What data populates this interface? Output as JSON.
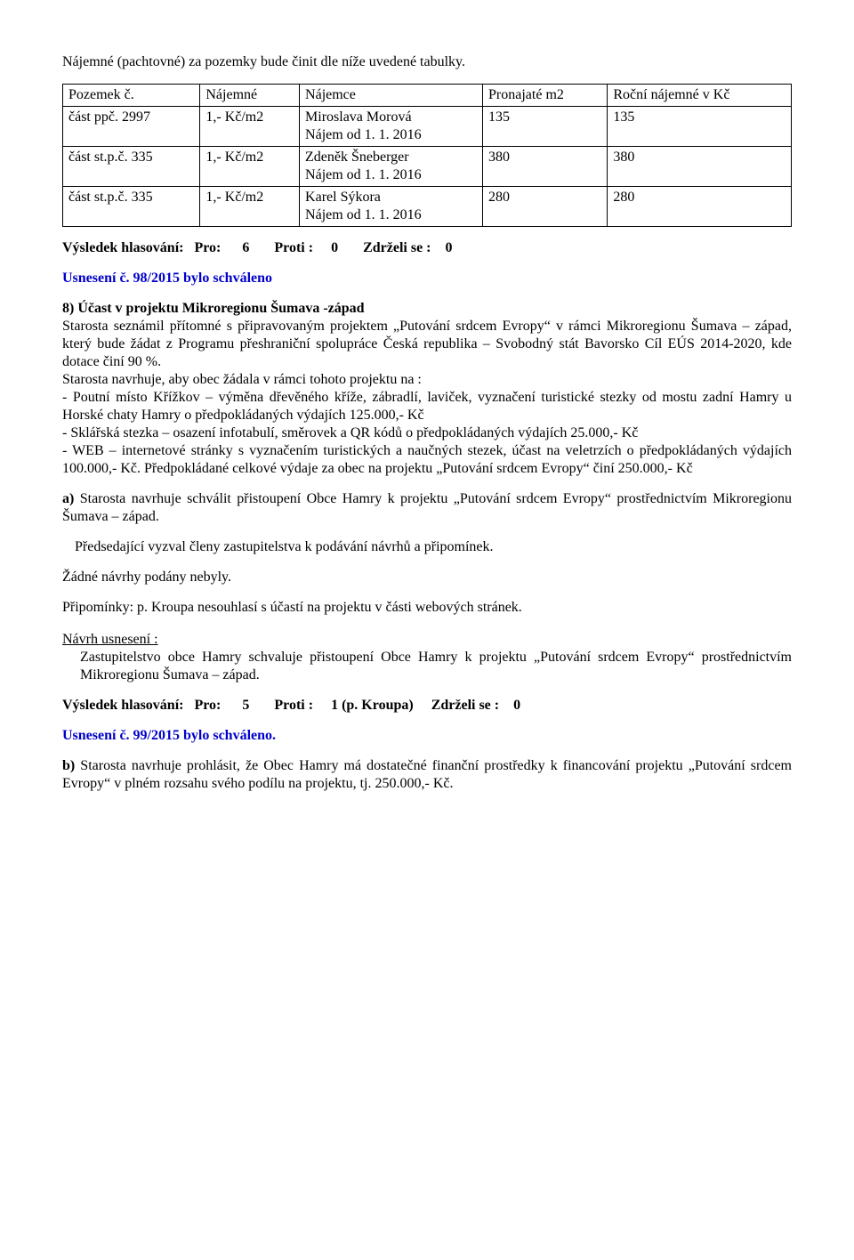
{
  "intro": "Nájemné (pachtovné) za pozemky bude činit dle níže uvedené tabulky.",
  "table": {
    "headers": [
      "Pozemek č.",
      "Nájemné",
      "Nájemce",
      "Pronajaté m2",
      "Roční nájemné v Kč"
    ],
    "rows": [
      [
        "část ppč. 2997",
        "1,- Kč/m2",
        "Miroslava Morová\nNájem od 1. 1. 2016",
        "135",
        "135"
      ],
      [
        "část st.p.č. 335",
        "1,- Kč/m2",
        "Zdeněk Šneberger\nNájem od 1. 1. 2016",
        "380",
        "380"
      ],
      [
        "část st.p.č. 335",
        "1,- Kč/m2",
        "Karel Sýkora\nNájem od 1. 1. 2016",
        "280",
        "280"
      ]
    ]
  },
  "vote1": {
    "label": "Výsledek hlasování:",
    "pro_label": "Pro:",
    "pro": "6",
    "proti_label": "Proti :",
    "proti": "0",
    "zdr_label": "Zdrželi se :",
    "zdr": "0"
  },
  "resolution1": "Usnesení č. 98/2015 bylo schváleno",
  "section8": {
    "heading": "8) Účast v projektu Mikroregionu Šumava -západ",
    "p1": "Starosta seznámil přítomné s připravovaným projektem „Putování srdcem Evropy“ v rámci Mikroregionu Šumava – západ, který bude žádat z Programu přeshraniční spolupráce Česká republika – Svobodný stát Bavorsko Cíl EÚS 2014-2020, kde dotace činí 90 %.",
    "p2": "Starosta navrhuje, aby obec žádala v rámci tohoto projektu na :",
    "b1": "- Poutní místo Křížkov – výměna dřevěného kříže, zábradlí, laviček, vyznačení turistické stezky od mostu zadní Hamry u Horské chaty Hamry o předpokládaných výdajích 125.000,- Kč",
    "b2": "- Sklářská stezka – osazení infotabulí, směrovek a QR kódů o předpokládaných výdajích 25.000,- Kč",
    "b3": "- WEB – internetové stránky s vyznačením turistických a naučných stezek, účast na veletrzích o předpokládaných výdajích 100.000,- Kč. Předpokládané celkové výdaje za obec na projektu „Putování srdcem Evropy“ činí 250.000,- Kč",
    "a_bold": "a)",
    "a_text": " Starosta navrhuje schválit přistoupení Obce Hamry k projektu „Putování srdcem Evropy“ prostřednictvím Mikroregionu Šumava – západ.",
    "call": "Předsedající vyzval členy zastupitelstva k podávání návrhů a připomínek.",
    "none": "Žádné návrhy podány nebyly.",
    "remark": "Připomínky: p. Kroupa nesouhlasí s účastí na projektu v části webových stránek.",
    "proposal_label": "Návrh usnesení :",
    "proposal_text": "Zastupitelstvo obce Hamry schvaluje přistoupení Obce Hamry k projektu „Putování srdcem Evropy“ prostřednictvím Mikroregionu Šumava – západ."
  },
  "vote2": {
    "label": "Výsledek hlasování:",
    "pro_label": "Pro:",
    "pro": "5",
    "proti_label": "Proti :",
    "proti": "1 (p. Kroupa)",
    "zdr_label": "Zdrželi se :",
    "zdr": "0"
  },
  "resolution2": "Usnesení č. 99/2015 bylo schváleno.",
  "b_bold": "b)",
  "b_text": " Starosta navrhuje prohlásit, že Obec Hamry má dostatečné finanční prostředky k financování projektu „Putování srdcem Evropy“ v plném rozsahu svého podílu na projektu, tj. 250.000,- Kč."
}
